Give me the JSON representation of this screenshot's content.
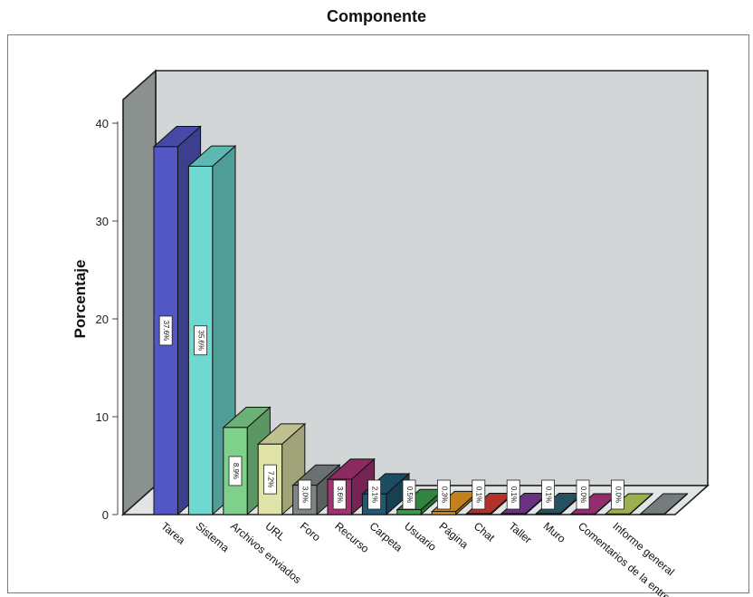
{
  "chart_data": {
    "type": "bar",
    "title": "Componente",
    "ylabel": "Porcentaje",
    "xlabel": "",
    "ylim": [
      0,
      40
    ],
    "yticks": [
      "0",
      "10",
      "20",
      "30",
      "40"
    ],
    "grid": false,
    "categories": [
      "Tarea",
      "Sistema",
      "Archivos enviados",
      "URL",
      "Foro",
      "Recurso",
      "Carpeta",
      "Usuario",
      "Página",
      "Chat",
      "Taller",
      "Muro",
      "Comentarios de la entrega",
      "Informe general",
      ""
    ],
    "values": [
      37.6,
      35.6,
      8.9,
      7.2,
      3.0,
      3.6,
      2.1,
      0.5,
      0.3,
      0.1,
      0.1,
      0.1,
      0.0,
      0.0,
      0.0
    ],
    "value_labels": [
      "37.6%",
      "35.6%",
      "8.9%",
      "7.2%",
      "3.0%",
      "3.6%",
      "2.1%",
      "0.5%",
      "0.3%",
      "0.1%",
      "0.1%",
      "0.1%",
      "0.0%",
      "0.0%",
      ""
    ],
    "colors": [
      "#5257c3",
      "#6fd9d1",
      "#7ed08a",
      "#dfe3a8",
      "#7f8486",
      "#a33273",
      "#1f5a72",
      "#3a9b4a",
      "#e49a25",
      "#d13a32",
      "#7e3a9b",
      "#2c6175",
      "#ab3680",
      "#b8cf5e",
      "#8a9293"
    ]
  }
}
